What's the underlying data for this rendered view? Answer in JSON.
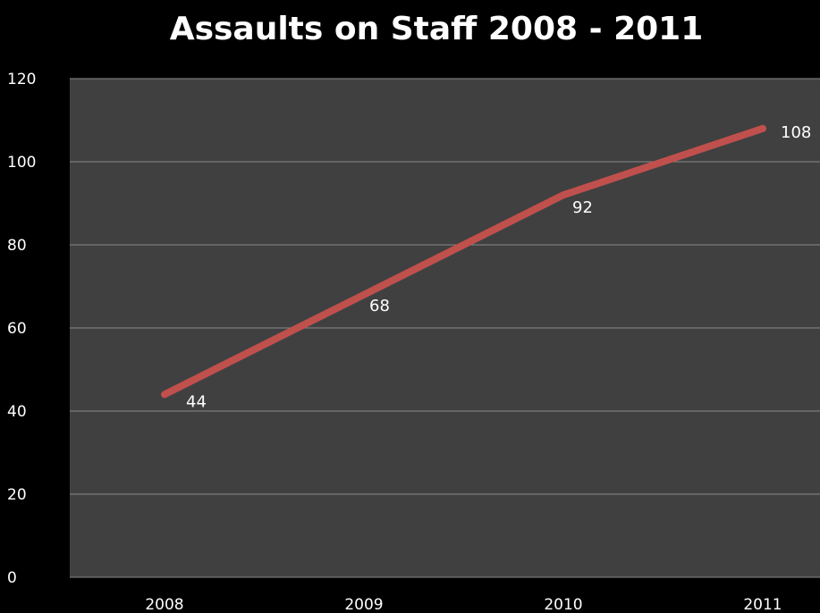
{
  "chart_data": {
    "type": "line",
    "title": "Assaults on Staff 2008 - 2011",
    "xlabel": "",
    "ylabel": "",
    "categories": [
      "2008",
      "2009",
      "2010",
      "2011"
    ],
    "series": [
      {
        "values": [
          44,
          68,
          92,
          108
        ],
        "color": "#C0504D"
      }
    ],
    "data_labels": [
      "44",
      "68",
      "92",
      "108"
    ],
    "ylim": [
      0,
      120
    ],
    "yticks": [
      0,
      20,
      40,
      60,
      80,
      100,
      120
    ],
    "ytick_labels": [
      "0",
      "20",
      "40",
      "60",
      "80",
      "100",
      "120"
    ],
    "grid": true,
    "legend": "none",
    "colors": {
      "background": "#000000",
      "plot_area": "#404040",
      "gridline": "#8a8a8a",
      "text": "#ffffff",
      "line": "#C0504D"
    }
  }
}
